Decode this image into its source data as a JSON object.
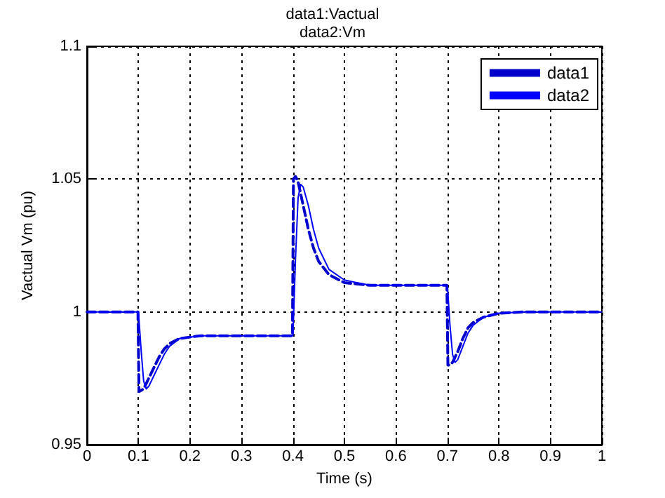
{
  "chart_data": {
    "type": "line",
    "title": "data1:Vactual",
    "subtitle": "data2:Vm",
    "xlabel": "Time (s)",
    "ylabel": "Vactual Vm (pu)",
    "xlim": [
      0,
      1
    ],
    "ylim": [
      0.95,
      1.1
    ],
    "xticks": [
      0,
      0.1,
      0.2,
      0.3,
      0.4,
      0.5,
      0.6,
      0.7,
      0.8,
      0.9,
      1
    ],
    "yticks": [
      0.95,
      1,
      1.05,
      1.1
    ],
    "grid": true,
    "legend": "top right",
    "marker": "none",
    "series": [
      {
        "name": "data1",
        "color": "#0000cc",
        "line_style": "dashed",
        "x": [
          0,
          0.099,
          0.101,
          0.11,
          0.12,
          0.13,
          0.14,
          0.15,
          0.16,
          0.18,
          0.2,
          0.22,
          0.3,
          0.399,
          0.401,
          0.405,
          0.41,
          0.42,
          0.43,
          0.44,
          0.45,
          0.47,
          0.5,
          0.55,
          0.699,
          0.701,
          0.705,
          0.71,
          0.72,
          0.73,
          0.74,
          0.75,
          0.77,
          0.8,
          0.85,
          1
        ],
        "values": [
          1,
          1,
          0.97,
          0.971,
          0.975,
          0.979,
          0.983,
          0.986,
          0.988,
          0.99,
          0.9905,
          0.991,
          0.991,
          0.991,
          1.05,
          1.051,
          1.049,
          1.04,
          1.031,
          1.024,
          1.019,
          1.014,
          1.011,
          1.01,
          1.01,
          0.98,
          0.98,
          0.981,
          0.985,
          0.99,
          0.994,
          0.996,
          0.998,
          0.9995,
          1,
          1
        ]
      },
      {
        "name": "data2",
        "color": "#0000ff",
        "line_style": "solid",
        "x": [
          0,
          0.1,
          0.105,
          0.11,
          0.115,
          0.12,
          0.13,
          0.14,
          0.15,
          0.16,
          0.18,
          0.2,
          0.22,
          0.3,
          0.4,
          0.405,
          0.41,
          0.415,
          0.42,
          0.43,
          0.44,
          0.45,
          0.47,
          0.5,
          0.55,
          0.7,
          0.705,
          0.71,
          0.715,
          0.72,
          0.73,
          0.74,
          0.75,
          0.77,
          0.8,
          0.85,
          1
        ],
        "values": [
          1,
          1,
          0.986,
          0.974,
          0.971,
          0.972,
          0.976,
          0.98,
          0.984,
          0.987,
          0.99,
          0.9905,
          0.991,
          0.991,
          0.991,
          1.02,
          1.043,
          1.048,
          1.047,
          1.04,
          1.031,
          1.024,
          1.016,
          1.012,
          1.01,
          1.01,
          0.995,
          0.984,
          0.981,
          0.982,
          0.987,
          0.992,
          0.995,
          0.998,
          0.9995,
          1,
          1
        ]
      }
    ]
  }
}
